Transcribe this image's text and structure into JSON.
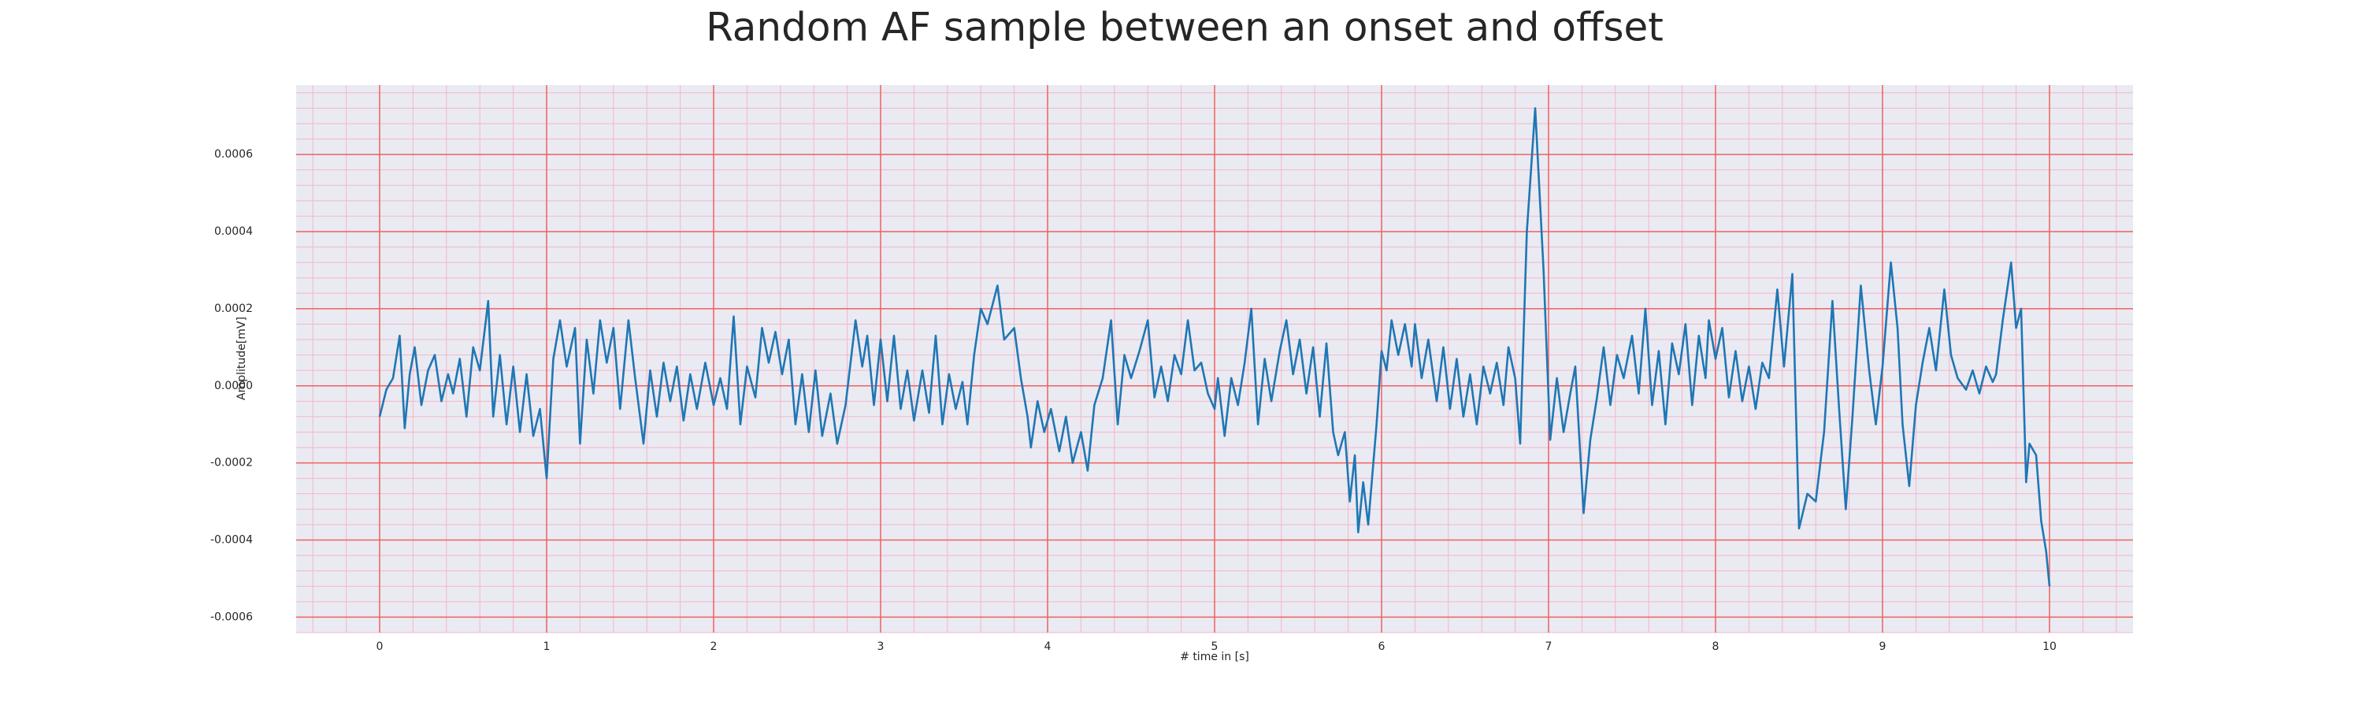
{
  "chart_data": {
    "type": "line",
    "title": "Random AF sample between an onset and offset",
    "xlabel": "# time in [s]",
    "ylabel": "Amplitude[mV]",
    "color": "#1f77b4",
    "grid": true,
    "minor_grid": true,
    "xlim": [
      -0.5,
      10.5
    ],
    "ylim": [
      -0.00064,
      0.00078
    ],
    "xticks": [
      0,
      1,
      2,
      3,
      4,
      5,
      6,
      7,
      8,
      9,
      10
    ],
    "yticks": [
      -0.0006,
      -0.0004,
      -0.0002,
      {
        "value": 0,
        "label": "0.0000"
      },
      0.0002,
      0.0004,
      0.0006
    ],
    "x": [
      0,
      0.04,
      0.08,
      0.12,
      0.15,
      0.18,
      0.21,
      0.25,
      0.29,
      0.33,
      0.37,
      0.41,
      0.44,
      0.48,
      0.52,
      0.56,
      0.6,
      0.65,
      0.68,
      0.72,
      0.76,
      0.8,
      0.84,
      0.88,
      0.92,
      0.96,
      1.0,
      1.04,
      1.08,
      1.12,
      1.17,
      1.2,
      1.24,
      1.28,
      1.32,
      1.36,
      1.4,
      1.44,
      1.49,
      1.53,
      1.58,
      1.62,
      1.66,
      1.7,
      1.74,
      1.78,
      1.82,
      1.86,
      1.9,
      1.95,
      2.0,
      2.04,
      2.08,
      2.12,
      2.16,
      2.2,
      2.25,
      2.29,
      2.33,
      2.37,
      2.41,
      2.45,
      2.49,
      2.53,
      2.57,
      2.61,
      2.65,
      2.7,
      2.74,
      2.79,
      2.85,
      2.89,
      2.92,
      2.96,
      3.0,
      3.04,
      3.08,
      3.12,
      3.16,
      3.2,
      3.25,
      3.29,
      3.33,
      3.37,
      3.41,
      3.45,
      3.49,
      3.52,
      3.56,
      3.6,
      3.64,
      3.7,
      3.74,
      3.8,
      3.84,
      3.88,
      3.9,
      3.94,
      3.98,
      4.02,
      4.07,
      4.11,
      4.15,
      4.2,
      4.24,
      4.28,
      4.33,
      4.38,
      4.42,
      4.46,
      4.5,
      4.55,
      4.6,
      4.64,
      4.68,
      4.72,
      4.76,
      4.8,
      4.84,
      4.88,
      4.92,
      4.96,
      5.0,
      5.02,
      5.06,
      5.1,
      5.14,
      5.18,
      5.22,
      5.26,
      5.3,
      5.34,
      5.39,
      5.43,
      5.47,
      5.51,
      5.55,
      5.59,
      5.63,
      5.67,
      5.71,
      5.74,
      5.78,
      5.81,
      5.84,
      5.86,
      5.89,
      5.92,
      5.97,
      6.0,
      6.03,
      6.06,
      6.1,
      6.14,
      6.18,
      6.2,
      6.24,
      6.28,
      6.33,
      6.37,
      6.41,
      6.45,
      6.49,
      6.53,
      6.57,
      6.61,
      6.65,
      6.69,
      6.73,
      6.76,
      6.8,
      6.83,
      6.87,
      6.92,
      6.97,
      7.01,
      7.05,
      7.09,
      7.13,
      7.16,
      7.21,
      7.25,
      7.29,
      7.33,
      7.37,
      7.41,
      7.45,
      7.5,
      7.54,
      7.58,
      7.62,
      7.66,
      7.7,
      7.74,
      7.78,
      7.82,
      7.86,
      7.9,
      7.94,
      7.96,
      8.0,
      8.04,
      8.08,
      8.12,
      8.16,
      8.2,
      8.24,
      8.28,
      8.32,
      8.37,
      8.41,
      8.46,
      8.5,
      8.55,
      8.6,
      8.65,
      8.7,
      8.74,
      8.78,
      8.82,
      8.87,
      8.92,
      8.96,
      9.0,
      9.05,
      9.09,
      9.12,
      9.16,
      9.2,
      9.24,
      9.28,
      9.32,
      9.37,
      9.41,
      9.45,
      9.5,
      9.54,
      9.58,
      9.62,
      9.66,
      9.68,
      9.72,
      9.77,
      9.8,
      9.83,
      9.86,
      9.88,
      9.92,
      9.95,
      9.98,
      10.0
    ],
    "values": [
      -8e-05,
      -1e-05,
      2e-05,
      0.00013,
      -0.00011,
      3e-05,
      0.0001,
      -5e-05,
      4e-05,
      8e-05,
      -4e-05,
      3e-05,
      -2e-05,
      7e-05,
      -8e-05,
      0.0001,
      4e-05,
      0.00022,
      -8e-05,
      8e-05,
      -0.0001,
      5e-05,
      -0.00012,
      3e-05,
      -0.00013,
      -6e-05,
      -0.00024,
      7e-05,
      0.00017,
      5e-05,
      0.00015,
      -0.00015,
      0.00012,
      -2e-05,
      0.00017,
      6e-05,
      0.00015,
      -6e-05,
      0.00017,
      2e-05,
      -0.00015,
      4e-05,
      -8e-05,
      6e-05,
      -4e-05,
      5e-05,
      -9e-05,
      3e-05,
      -6e-05,
      6e-05,
      -5e-05,
      2e-05,
      -6e-05,
      0.00018,
      -0.0001,
      5e-05,
      -3e-05,
      0.00015,
      6e-05,
      0.00014,
      3e-05,
      0.00012,
      -0.0001,
      3e-05,
      -0.00012,
      4e-05,
      -0.00013,
      -2e-05,
      -0.00015,
      -5e-05,
      0.00017,
      5e-05,
      0.00013,
      -5e-05,
      0.00012,
      -4e-05,
      0.00013,
      -6e-05,
      4e-05,
      -9e-05,
      4e-05,
      -7e-05,
      0.00013,
      -0.0001,
      3e-05,
      -6e-05,
      1e-05,
      -0.0001,
      8e-05,
      0.0002,
      0.00016,
      0.00026,
      0.00012,
      0.00015,
      2e-05,
      -8e-05,
      -0.00016,
      -4e-05,
      -0.00012,
      -6e-05,
      -0.00017,
      -8e-05,
      -0.0002,
      -0.00012,
      -0.00022,
      -5e-05,
      2e-05,
      0.00017,
      -0.0001,
      8e-05,
      2e-05,
      9e-05,
      0.00017,
      -3e-05,
      5e-05,
      -4e-05,
      8e-05,
      3e-05,
      0.00017,
      4e-05,
      6e-05,
      -2e-05,
      -6e-05,
      2e-05,
      -0.00013,
      2e-05,
      -5e-05,
      6e-05,
      0.0002,
      -0.0001,
      7e-05,
      -4e-05,
      9e-05,
      0.00017,
      3e-05,
      0.00012,
      -2e-05,
      0.0001,
      -8e-05,
      0.00011,
      -0.00012,
      -0.00018,
      -0.00012,
      -0.0003,
      -0.00018,
      -0.00038,
      -0.00025,
      -0.00036,
      -0.0001,
      9e-05,
      4e-05,
      0.00017,
      8e-05,
      0.00016,
      5e-05,
      0.00016,
      2e-05,
      0.00012,
      -4e-05,
      0.0001,
      -6e-05,
      7e-05,
      -8e-05,
      3e-05,
      -0.0001,
      5e-05,
      -2e-05,
      6e-05,
      -5e-05,
      0.0001,
      2e-05,
      -0.00015,
      0.0004,
      0.00072,
      0.0003,
      -0.00014,
      2e-05,
      -0.00012,
      -2e-05,
      5e-05,
      -0.00033,
      -0.00014,
      -3e-05,
      0.0001,
      -5e-05,
      8e-05,
      2e-05,
      0.00013,
      -2e-05,
      0.0002,
      -5e-05,
      9e-05,
      -0.0001,
      0.00011,
      3e-05,
      0.00016,
      -5e-05,
      0.00013,
      2e-05,
      0.00017,
      7e-05,
      0.00015,
      -3e-05,
      9e-05,
      -4e-05,
      5e-05,
      -6e-05,
      6e-05,
      2e-05,
      0.00025,
      5e-05,
      0.00029,
      -0.00037,
      -0.00028,
      -0.0003,
      -0.00012,
      0.00022,
      -6e-05,
      -0.00032,
      -8e-05,
      0.00026,
      4e-05,
      -0.0001,
      5e-05,
      0.00032,
      0.00015,
      -0.0001,
      -0.00026,
      -5e-05,
      6e-05,
      0.00015,
      4e-05,
      0.00025,
      8e-05,
      2e-05,
      -1e-05,
      4e-05,
      -2e-05,
      5e-05,
      1e-05,
      3e-05,
      0.00017,
      0.00032,
      0.00015,
      0.0002,
      -0.00025,
      -0.00015,
      -0.00018,
      -0.00035,
      -0.00043,
      -0.00052
    ]
  }
}
